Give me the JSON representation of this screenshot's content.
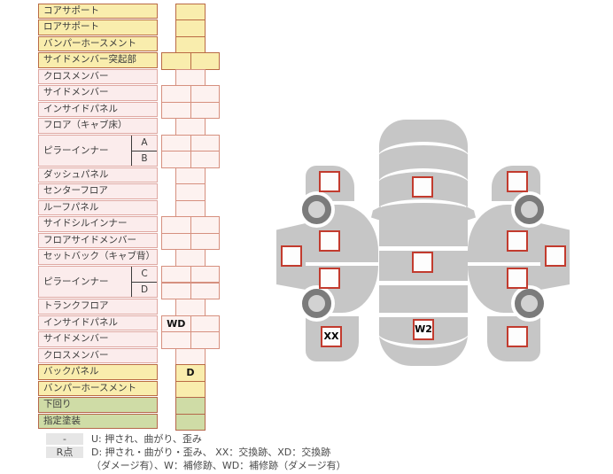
{
  "colors": {
    "yellow_fill": "#f9edad",
    "yellow_border": "#ba6b45",
    "pink_fill": "#fbecec",
    "pink_border": "#dfa8a2",
    "pink_cell_fill": "#fdf2f0",
    "pink_cell_border": "#d6907f",
    "green_fill": "#cfdca6",
    "green_border": "#b5674a",
    "body_gray": "#c6c6c6",
    "wheel_dark": "#7b7b7b",
    "wheel_light": "#d2d2d2",
    "marker_border": "#c23b2e",
    "marker_fill": "#fdfdfd",
    "badge_bg": "#e6e6e6",
    "text": "#3b3b3b"
  },
  "parts_table": {
    "groups": [
      {
        "label": "コアサポート",
        "scheme": "yellow",
        "cell": "single"
      },
      {
        "label": "ロアサポート",
        "scheme": "yellow",
        "cell": "single"
      },
      {
        "label": "バンパーホースメント",
        "scheme": "yellow",
        "cell": "single"
      },
      {
        "label": "サイドメンバー突起部",
        "scheme": "yellow",
        "cell": "double"
      },
      {
        "label": "クロスメンバー",
        "scheme": "pink",
        "cell": "single"
      },
      {
        "label": "サイドメンバー",
        "scheme": "pink",
        "cell": "double"
      },
      {
        "label": "インサイドパネル",
        "scheme": "pink",
        "cell": "double"
      },
      {
        "label": "フロア（キャブ床）",
        "scheme": "pink",
        "cell": "single"
      },
      {
        "label": "ピラーインナー",
        "scheme": "pink",
        "subs": [
          {
            "label": "A",
            "cell": "double"
          },
          {
            "label": "B",
            "cell": "double"
          }
        ]
      },
      {
        "label": "ダッシュパネル",
        "scheme": "pink",
        "cell": "single"
      },
      {
        "label": "センターフロア",
        "scheme": "pink",
        "cell": "single"
      },
      {
        "label": "ルーフパネル",
        "scheme": "pink",
        "cell": "single"
      },
      {
        "label": "サイドシルインナー",
        "scheme": "pink",
        "cell": "double"
      },
      {
        "label": "フロアサイドメンバー",
        "scheme": "pink",
        "cell": "double"
      },
      {
        "label": "セットバック（キャブ背）",
        "scheme": "pink",
        "cell": "single"
      },
      {
        "label": "ピラーインナー",
        "scheme": "pink",
        "subs": [
          {
            "label": "C",
            "cell": "double"
          },
          {
            "label": "D",
            "cell": "double"
          }
        ]
      },
      {
        "label": "トランクフロア",
        "scheme": "pink",
        "cell": "single"
      },
      {
        "label": "インサイドパネル",
        "scheme": "pink",
        "cell": "double",
        "cell_labels": [
          "WD",
          ""
        ]
      },
      {
        "label": "サイドメンバー",
        "scheme": "pink",
        "cell": "double"
      },
      {
        "label": "クロスメンバー",
        "scheme": "pink",
        "cell": "single"
      },
      {
        "label": "バックパネル",
        "scheme": "yellow",
        "cell": "single",
        "cell_labels": [
          "D"
        ]
      },
      {
        "label": "バンパーホースメント",
        "scheme": "yellow",
        "cell": "single"
      },
      {
        "label": "下回り",
        "scheme": "green",
        "cell": "single"
      },
      {
        "label": "指定塗装",
        "scheme": "green",
        "cell": "single"
      }
    ]
  },
  "legend": {
    "rows": [
      {
        "badge": "-",
        "text": "U: 押され、曲がり、歪み"
      },
      {
        "badge": "R点",
        "text": "D: 押され・曲がり・歪み、 XX：交換跡、XD：交換跡"
      },
      {
        "badge": "",
        "text": "（ダメージ有）、W：補修跡、WD：補修跡（ダメージ有）"
      }
    ]
  },
  "diagram": {
    "markers": [
      {
        "id": "top-hood",
        "label": ""
      },
      {
        "id": "top-roof-center",
        "label": ""
      },
      {
        "id": "top-trunk",
        "label": "W2"
      },
      {
        "id": "left-front-fender",
        "label": ""
      },
      {
        "id": "left-front-door",
        "label": ""
      },
      {
        "id": "left-rear-door",
        "label": ""
      },
      {
        "id": "left-rear-fender",
        "label": "XX"
      },
      {
        "id": "left-sill-outer",
        "label": ""
      },
      {
        "id": "right-front-fender",
        "label": ""
      },
      {
        "id": "right-front-door",
        "label": ""
      },
      {
        "id": "right-rear-door",
        "label": ""
      },
      {
        "id": "right-rear-fender",
        "label": ""
      },
      {
        "id": "right-sill-outer",
        "label": ""
      }
    ]
  }
}
